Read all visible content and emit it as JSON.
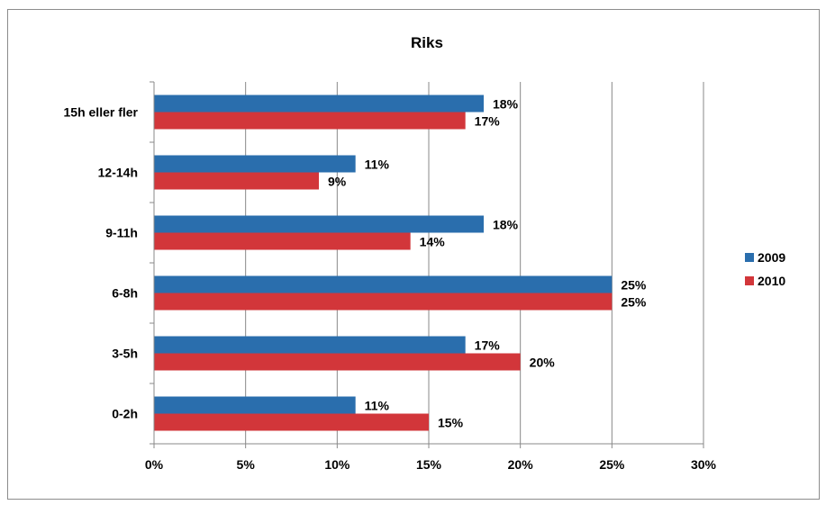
{
  "chart_data": {
    "type": "bar",
    "orientation": "horizontal",
    "title": "Riks",
    "xlabel": "",
    "ylabel": "",
    "categories": [
      "15h eller fler",
      "12-14h",
      "9-11h",
      "6-8h",
      "3-5h",
      "0-2h"
    ],
    "series": [
      {
        "name": "2009",
        "color": "#2a6ead",
        "values": [
          18,
          11,
          18,
          25,
          17,
          11
        ],
        "labels": [
          "18%",
          "11%",
          "18%",
          "25%",
          "17%",
          "11%"
        ]
      },
      {
        "name": "2010",
        "color": "#d2363a",
        "values": [
          17,
          9,
          14,
          25,
          20,
          15
        ],
        "labels": [
          "17%",
          "9%",
          "14%",
          "25%",
          "20%",
          "15%"
        ]
      }
    ],
    "xlim": [
      0,
      30
    ],
    "xticks": [
      "0%",
      "5%",
      "10%",
      "15%",
      "20%",
      "25%",
      "30%"
    ],
    "xtick_values": [
      0,
      5,
      10,
      15,
      20,
      25,
      30
    ],
    "grid": true,
    "legend_position": "right"
  }
}
